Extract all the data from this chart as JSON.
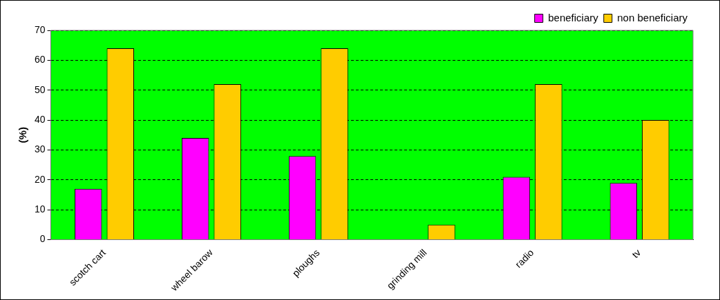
{
  "chart_data": {
    "type": "bar",
    "ylabel": "(%)",
    "categories": [
      "scotch cart",
      "wheel barow",
      "ploughs",
      "grinding mill",
      "radio",
      "tv"
    ],
    "series": [
      {
        "name": "beneficiary",
        "color": "#ff00ff",
        "values": [
          17,
          34,
          28,
          0,
          21,
          19
        ]
      },
      {
        "name": "non beneficiary",
        "color": "#ffcc00",
        "values": [
          64,
          52,
          64,
          5,
          52,
          40
        ]
      }
    ],
    "ylim": [
      0,
      70
    ],
    "yticks": [
      0,
      10,
      20,
      30,
      40,
      50,
      60,
      70
    ],
    "grid": "y",
    "legend": "top right"
  }
}
